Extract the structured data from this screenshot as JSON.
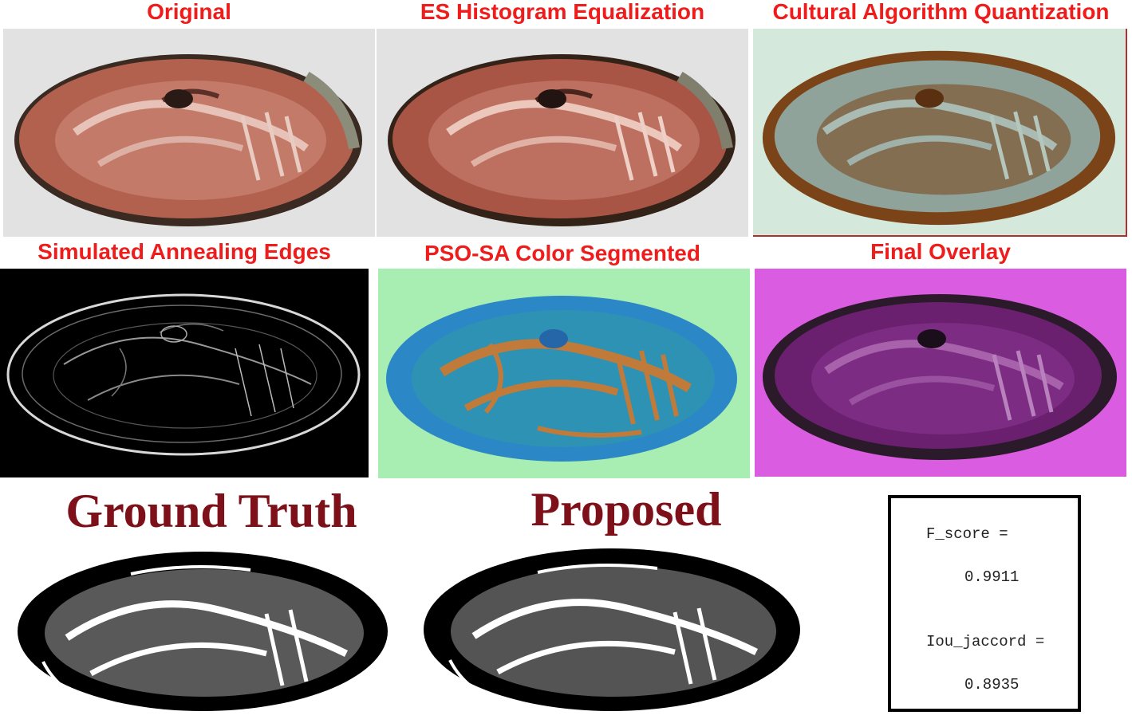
{
  "panels": {
    "original": {
      "title": "Original"
    },
    "histeq": {
      "title": "ES Histogram Equalization"
    },
    "quant": {
      "title": "Cultural Algorithm Quantization"
    },
    "edges": {
      "title": "Simulated Annealing Edges"
    },
    "segmented": {
      "title": "PSO-SA Color Segmented"
    },
    "overlay": {
      "title": "Final Overlay"
    }
  },
  "comparison": {
    "ground_truth_title": "Ground Truth",
    "proposed_title": "Proposed"
  },
  "metrics": {
    "f_score_label": "F_score =",
    "f_score_value": "0.9911",
    "iou_label": "Iou_jaccord =",
    "iou_value": "0.8935"
  },
  "colors": {
    "panel_title": "#ef1c1c",
    "comparison_title": "#7d1018",
    "original_bg": "#e2e2e2",
    "fossil_red": "#b3614f",
    "quant_bg": "#d5e8dc",
    "quant_brown": "#7a4418",
    "quant_gray": "#8fa39a",
    "edges_bg": "#000000",
    "segmented_bg": "#a8eeb2",
    "segmented_blue": "#2c87c7",
    "segmented_orange": "#c07a3a",
    "overlay_bg": "#da5ce0",
    "overlay_purple": "#6a1f6f"
  }
}
